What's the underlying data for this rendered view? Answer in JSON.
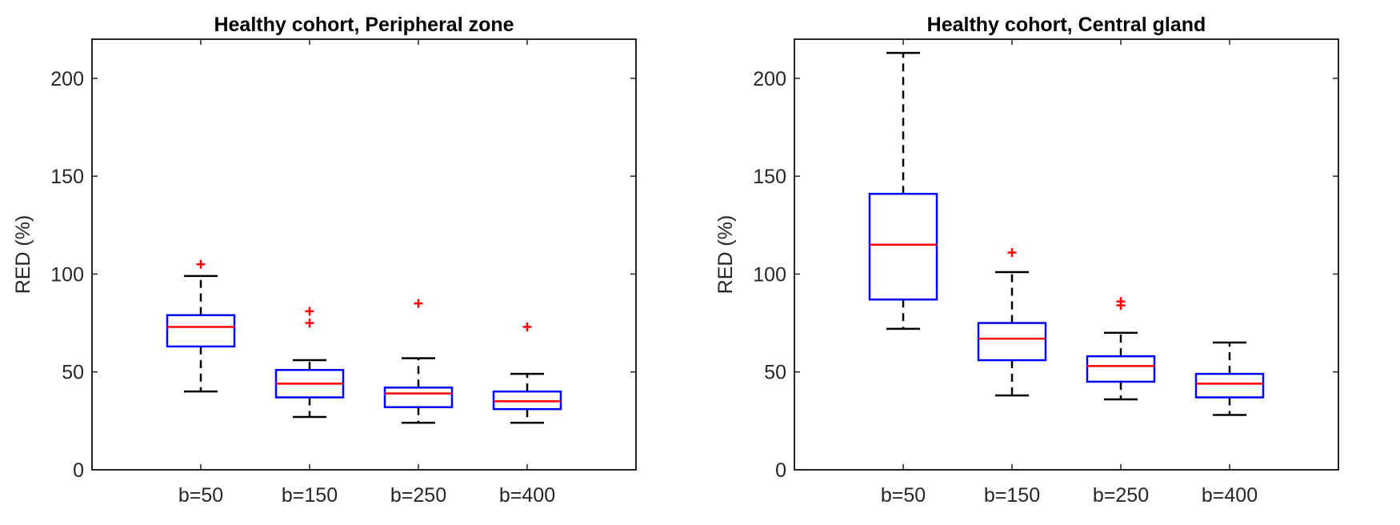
{
  "chart_data": [
    {
      "type": "boxplot",
      "title": "Healthy cohort, Peripheral zone",
      "xlabel": "",
      "ylabel": "RED (%)",
      "ylim": [
        0,
        220
      ],
      "yticks": [
        0,
        50,
        100,
        150,
        200
      ],
      "categories": [
        "b=50",
        "b=150",
        "b=250",
        "b=400"
      ],
      "boxes": [
        {
          "whisker_low": 40,
          "q1": 63,
          "median": 73,
          "q3": 79,
          "whisker_high": 99,
          "outliers": [
            105
          ]
        },
        {
          "whisker_low": 27,
          "q1": 37,
          "median": 44,
          "q3": 51,
          "whisker_high": 56,
          "outliers": [
            75,
            81
          ]
        },
        {
          "whisker_low": 24,
          "q1": 32,
          "median": 39,
          "q3": 42,
          "whisker_high": 57,
          "outliers": [
            85
          ]
        },
        {
          "whisker_low": 24,
          "q1": 31,
          "median": 35,
          "q3": 40,
          "whisker_high": 49,
          "outliers": [
            73
          ]
        }
      ]
    },
    {
      "type": "boxplot",
      "title": "Healthy cohort, Central gland",
      "xlabel": "",
      "ylabel": "RED (%)",
      "ylim": [
        0,
        220
      ],
      "yticks": [
        0,
        50,
        100,
        150,
        200
      ],
      "categories": [
        "b=50",
        "b=150",
        "b=250",
        "b=400"
      ],
      "boxes": [
        {
          "whisker_low": 72,
          "q1": 87,
          "median": 115,
          "q3": 141,
          "whisker_high": 213,
          "outliers": []
        },
        {
          "whisker_low": 38,
          "q1": 56,
          "median": 67,
          "q3": 75,
          "whisker_high": 101,
          "outliers": [
            111
          ]
        },
        {
          "whisker_low": 36,
          "q1": 45,
          "median": 53,
          "q3": 58,
          "whisker_high": 70,
          "outliers": [
            84,
            86
          ]
        },
        {
          "whisker_low": 28,
          "q1": 37,
          "median": 44,
          "q3": 49,
          "whisker_high": 65,
          "outliers": []
        }
      ]
    }
  ],
  "colors": {
    "box": "#0000ff",
    "median": "#ff0000",
    "outlier": "#ff0000",
    "whisker": "#000000",
    "axis": "#262626"
  }
}
